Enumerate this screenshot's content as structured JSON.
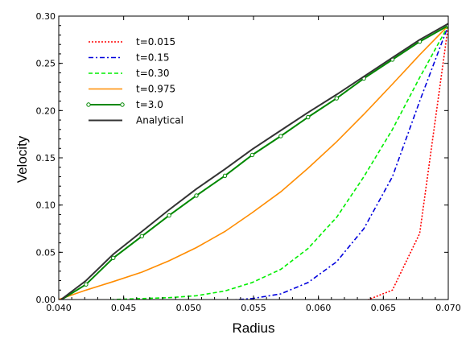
{
  "chart_data": {
    "type": "line",
    "xlabel": "Radius",
    "ylabel": "Velocity",
    "xlim": [
      0.04,
      0.07
    ],
    "ylim": [
      0.0,
      0.3
    ],
    "xticks": [
      "0.040",
      "0.045",
      "0.050",
      "0.055",
      "0.060",
      "0.065",
      "0.070"
    ],
    "yticks": [
      "0.00",
      "0.05",
      "0.10",
      "0.15",
      "0.20",
      "0.25",
      "0.30"
    ],
    "grid": false,
    "legend_position": "top-left",
    "series": [
      {
        "name": "t=0.015",
        "color": "#ff0000",
        "dash": "dotted",
        "markers": false,
        "x": [
          0.04,
          0.0421,
          0.0442,
          0.0464,
          0.0485,
          0.0506,
          0.0528,
          0.0549,
          0.0571,
          0.0592,
          0.0614,
          0.0635,
          0.0657,
          0.0678,
          0.07
        ],
        "y": [
          -0.003,
          -0.003,
          -0.003,
          -0.003,
          -0.003,
          -0.003,
          -0.003,
          -0.003,
          -0.003,
          -0.003,
          -0.003,
          -0.002,
          0.01,
          0.07,
          0.29
        ]
      },
      {
        "name": "t=0.15",
        "color": "#0000dd",
        "dash": "dashdot",
        "markers": false,
        "x": [
          0.04,
          0.0421,
          0.0442,
          0.0464,
          0.0485,
          0.0506,
          0.0528,
          0.0549,
          0.0571,
          0.0592,
          0.0614,
          0.0635,
          0.0657,
          0.0678,
          0.07
        ],
        "y": [
          -0.002,
          -0.002,
          -0.002,
          -0.002,
          -0.002,
          -0.001,
          -0.001,
          0.001,
          0.006,
          0.018,
          0.04,
          0.075,
          0.13,
          0.21,
          0.29
        ]
      },
      {
        "name": "t=0.30",
        "color": "#00ee00",
        "dash": "dashed",
        "markers": false,
        "x": [
          0.04,
          0.0421,
          0.0442,
          0.0464,
          0.0485,
          0.0506,
          0.0528,
          0.0549,
          0.0571,
          0.0592,
          0.0614,
          0.0635,
          0.0657,
          0.0678,
          0.07
        ],
        "y": [
          -0.002,
          -0.001,
          0.0,
          0.001,
          0.002,
          0.004,
          0.009,
          0.018,
          0.032,
          0.054,
          0.087,
          0.13,
          0.18,
          0.235,
          0.29
        ]
      },
      {
        "name": "t=0.975",
        "color": "#ff8c00",
        "dash": "solid",
        "markers": false,
        "x": [
          0.04,
          0.0421,
          0.0442,
          0.0464,
          0.0485,
          0.0506,
          0.0528,
          0.0549,
          0.0571,
          0.0592,
          0.0614,
          0.0635,
          0.0657,
          0.0678,
          0.07
        ],
        "y": [
          0.0,
          0.01,
          0.019,
          0.029,
          0.041,
          0.055,
          0.072,
          0.092,
          0.114,
          0.139,
          0.167,
          0.196,
          0.228,
          0.259,
          0.29
        ]
      },
      {
        "name": "t=3.0",
        "color": "#008800",
        "dash": "solid",
        "markers": true,
        "x": [
          0.04,
          0.0421,
          0.0442,
          0.0464,
          0.0485,
          0.0506,
          0.0528,
          0.0549,
          0.0571,
          0.0592,
          0.0614,
          0.0635,
          0.0657,
          0.0678,
          0.07
        ],
        "y": [
          -0.002,
          0.016,
          0.044,
          0.067,
          0.089,
          0.11,
          0.131,
          0.153,
          0.173,
          0.193,
          0.213,
          0.234,
          0.254,
          0.273,
          0.29
        ]
      },
      {
        "name": "Analytical",
        "color": "#333333",
        "dash": "solid",
        "markers": false,
        "x": [
          0.04,
          0.0421,
          0.0442,
          0.0464,
          0.0485,
          0.0506,
          0.0528,
          0.0549,
          0.0571,
          0.0592,
          0.0614,
          0.0635,
          0.0657,
          0.0678,
          0.07
        ],
        "y": [
          -0.002,
          0.02,
          0.048,
          0.072,
          0.095,
          0.117,
          0.138,
          0.159,
          0.179,
          0.198,
          0.217,
          0.236,
          0.256,
          0.275,
          0.292
        ]
      }
    ]
  }
}
